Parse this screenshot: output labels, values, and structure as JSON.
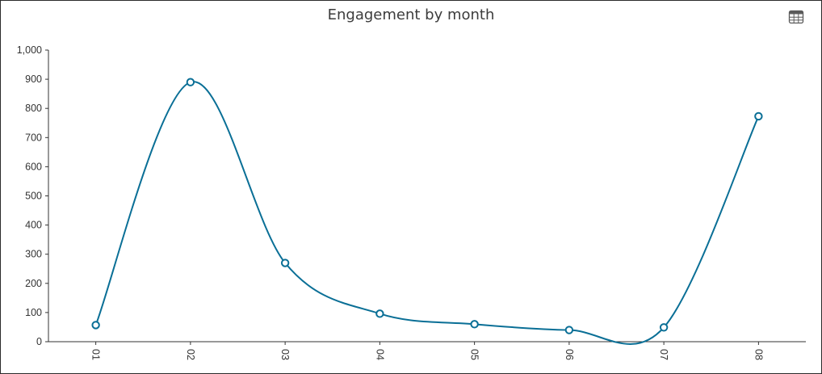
{
  "page": {
    "title": "Engagement by month",
    "table_icon": "table-icon"
  },
  "chart_data": {
    "type": "line",
    "title": "Engagement by month",
    "xlabel": "",
    "ylabel": "",
    "categories": [
      "01",
      "02",
      "03",
      "04",
      "05",
      "06",
      "07",
      "08"
    ],
    "series": [
      {
        "values": [
          57,
          890,
          270,
          96,
          60,
          40,
          49,
          773
        ]
      }
    ],
    "ylim": [
      0,
      1000
    ],
    "yticks": [
      0,
      100,
      200,
      300,
      400,
      500,
      600,
      700,
      800,
      900,
      1000
    ],
    "ytick_labels": [
      "0",
      "100",
      "200",
      "300",
      "400",
      "500",
      "600",
      "700",
      "800",
      "900",
      "1,000"
    ],
    "smooth": true,
    "grid": false,
    "line_color": "#0a6f96",
    "marker_fill": "#ffffff",
    "x_tick_rotation": "90"
  }
}
